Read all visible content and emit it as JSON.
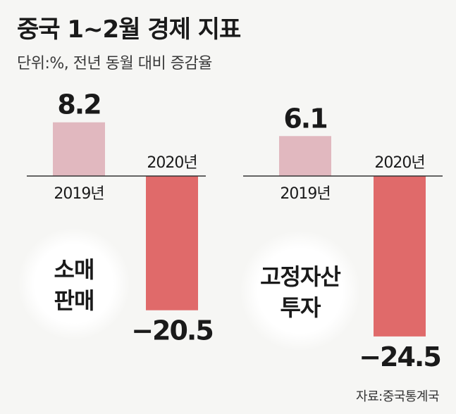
{
  "title": "중국 1~2월 경제 지표",
  "subtitle": "단위:%, 전년 동월 대비 증감율",
  "source": "자료:중국통계국",
  "colors": {
    "bar_2019": "#e1b8bf",
    "bar_2020": "#e06a6a",
    "baseline": "#333333",
    "circle": "#ffffff"
  },
  "chart_data": [
    {
      "type": "bar",
      "name_lines": [
        "소매",
        "판매"
      ],
      "categories": [
        "2019년",
        "2020년"
      ],
      "values": [
        8.2,
        -20.5
      ],
      "value_labels": [
        "8.2",
        "−20.5"
      ]
    },
    {
      "type": "bar",
      "name_lines": [
        "고정자산",
        "투자"
      ],
      "categories": [
        "2019년",
        "2020년"
      ],
      "values": [
        6.1,
        -24.5
      ],
      "value_labels": [
        "6.1",
        "−24.5"
      ]
    }
  ]
}
